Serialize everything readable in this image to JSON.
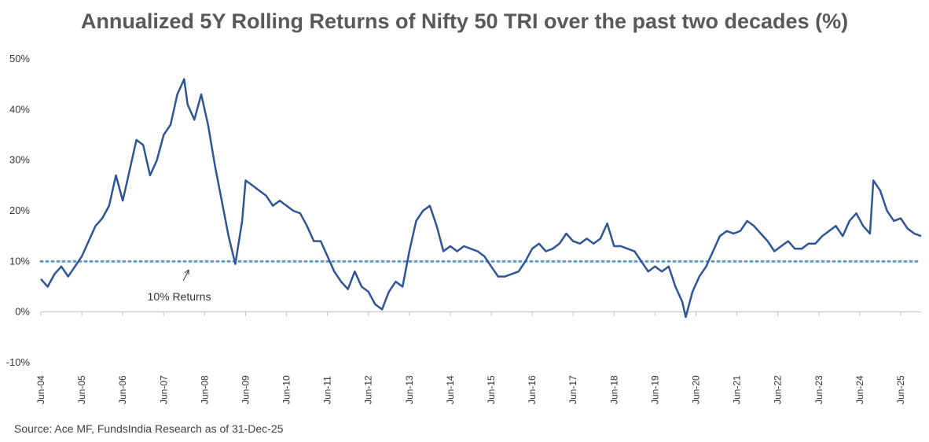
{
  "chart_data": {
    "type": "line",
    "title": "Annualized 5Y Rolling Returns of Nifty 50 TRI over the past two decades (%)",
    "source": "Source: Ace MF, FundsIndia Research as of 31-Dec-25",
    "ylim": [
      -10,
      50
    ],
    "yticks": [
      50,
      40,
      30,
      20,
      10,
      0,
      -10
    ],
    "ytick_labels": [
      "50%",
      "40%",
      "30%",
      "20%",
      "10%",
      "0%",
      "-10%"
    ],
    "xlim": [
      "2004-06",
      "2025-12"
    ],
    "xtick_labels": [
      "Jun-04",
      "Jun-05",
      "Jun-06",
      "Jun-07",
      "Jun-08",
      "Jun-09",
      "Jun-10",
      "Jun-11",
      "Jun-12",
      "Jun-13",
      "Jun-14",
      "Jun-15",
      "Jun-16",
      "Jun-17",
      "Jun-18",
      "Jun-19",
      "Jun-20",
      "Jun-21",
      "Jun-22",
      "Jun-23",
      "Jun-24",
      "Jun-25"
    ],
    "grid": false,
    "reference_line": {
      "y": 10,
      "style": "dotted",
      "label": "10% Returns",
      "color": "#5B9BD5"
    },
    "series": [
      {
        "color": "#2F5597",
        "points": [
          [
            "2004-06",
            6.5
          ],
          [
            "2004-08",
            5
          ],
          [
            "2004-10",
            7.5
          ],
          [
            "2004-12",
            9
          ],
          [
            "2005-02",
            7
          ],
          [
            "2005-04",
            9
          ],
          [
            "2005-06",
            11
          ],
          [
            "2005-08",
            14
          ],
          [
            "2005-10",
            17
          ],
          [
            "2005-12",
            18.5
          ],
          [
            "2006-02",
            21
          ],
          [
            "2006-04",
            27
          ],
          [
            "2006-06",
            22
          ],
          [
            "2006-08",
            28
          ],
          [
            "2006-10",
            34
          ],
          [
            "2006-12",
            33
          ],
          [
            "2007-02",
            27
          ],
          [
            "2007-04",
            30
          ],
          [
            "2007-06",
            35
          ],
          [
            "2007-08",
            37
          ],
          [
            "2007-10",
            43
          ],
          [
            "2007-12",
            46
          ],
          [
            "2008-01",
            41
          ],
          [
            "2008-03",
            38
          ],
          [
            "2008-05",
            43
          ],
          [
            "2008-07",
            37
          ],
          [
            "2008-09",
            29
          ],
          [
            "2008-11",
            22
          ],
          [
            "2009-01",
            15
          ],
          [
            "2009-03",
            9.5
          ],
          [
            "2009-05",
            18
          ],
          [
            "2009-06",
            26
          ],
          [
            "2009-08",
            25
          ],
          [
            "2009-10",
            24
          ],
          [
            "2009-12",
            23
          ],
          [
            "2010-02",
            21
          ],
          [
            "2010-04",
            22
          ],
          [
            "2010-06",
            21
          ],
          [
            "2010-08",
            20
          ],
          [
            "2010-10",
            19.5
          ],
          [
            "2010-12",
            17
          ],
          [
            "2011-02",
            14
          ],
          [
            "2011-04",
            14
          ],
          [
            "2011-06",
            11
          ],
          [
            "2011-08",
            8
          ],
          [
            "2011-10",
            6
          ],
          [
            "2011-12",
            4.5
          ],
          [
            "2012-02",
            8
          ],
          [
            "2012-04",
            5
          ],
          [
            "2012-06",
            4
          ],
          [
            "2012-08",
            1.5
          ],
          [
            "2012-10",
            0.5
          ],
          [
            "2012-12",
            4
          ],
          [
            "2013-02",
            6
          ],
          [
            "2013-04",
            5
          ],
          [
            "2013-06",
            12
          ],
          [
            "2013-08",
            18
          ],
          [
            "2013-10",
            20
          ],
          [
            "2013-12",
            21
          ],
          [
            "2014-02",
            17
          ],
          [
            "2014-04",
            12
          ],
          [
            "2014-06",
            13
          ],
          [
            "2014-08",
            12
          ],
          [
            "2014-10",
            13
          ],
          [
            "2014-12",
            12.5
          ],
          [
            "2015-02",
            12
          ],
          [
            "2015-04",
            11
          ],
          [
            "2015-06",
            9
          ],
          [
            "2015-08",
            7
          ],
          [
            "2015-10",
            7
          ],
          [
            "2015-12",
            7.5
          ],
          [
            "2016-02",
            8
          ],
          [
            "2016-04",
            10
          ],
          [
            "2016-06",
            12.5
          ],
          [
            "2016-08",
            13.5
          ],
          [
            "2016-10",
            12
          ],
          [
            "2016-12",
            12.5
          ],
          [
            "2017-02",
            13.5
          ],
          [
            "2017-04",
            15.5
          ],
          [
            "2017-06",
            14
          ],
          [
            "2017-08",
            13.5
          ],
          [
            "2017-10",
            14.5
          ],
          [
            "2017-12",
            13.5
          ],
          [
            "2018-02",
            14.5
          ],
          [
            "2018-04",
            17.5
          ],
          [
            "2018-06",
            13
          ],
          [
            "2018-08",
            13
          ],
          [
            "2018-10",
            12.5
          ],
          [
            "2018-12",
            12
          ],
          [
            "2019-02",
            10
          ],
          [
            "2019-04",
            8
          ],
          [
            "2019-06",
            9
          ],
          [
            "2019-08",
            8
          ],
          [
            "2019-10",
            9
          ],
          [
            "2019-12",
            5
          ],
          [
            "2020-02",
            2
          ],
          [
            "2020-03",
            -1
          ],
          [
            "2020-05",
            4
          ],
          [
            "2020-07",
            7
          ],
          [
            "2020-09",
            9
          ],
          [
            "2020-11",
            12
          ],
          [
            "2021-01",
            15
          ],
          [
            "2021-03",
            16
          ],
          [
            "2021-05",
            15.5
          ],
          [
            "2021-07",
            16
          ],
          [
            "2021-09",
            18
          ],
          [
            "2021-11",
            17
          ],
          [
            "2022-01",
            15.5
          ],
          [
            "2022-03",
            14
          ],
          [
            "2022-05",
            12
          ],
          [
            "2022-07",
            13
          ],
          [
            "2022-09",
            14
          ],
          [
            "2022-11",
            12.5
          ],
          [
            "2023-01",
            12.5
          ],
          [
            "2023-03",
            13.5
          ],
          [
            "2023-05",
            13.5
          ],
          [
            "2023-07",
            15
          ],
          [
            "2023-09",
            16
          ],
          [
            "2023-11",
            17
          ],
          [
            "2024-01",
            15
          ],
          [
            "2024-03",
            18
          ],
          [
            "2024-05",
            19.5
          ],
          [
            "2024-07",
            17
          ],
          [
            "2024-09",
            15.5
          ],
          [
            "2024-10",
            26
          ],
          [
            "2024-12",
            24
          ],
          [
            "2025-02",
            20
          ],
          [
            "2025-04",
            18
          ],
          [
            "2025-06",
            18.5
          ],
          [
            "2025-08",
            16.5
          ],
          [
            "2025-10",
            15.5
          ],
          [
            "2025-12",
            15
          ]
        ]
      }
    ]
  }
}
